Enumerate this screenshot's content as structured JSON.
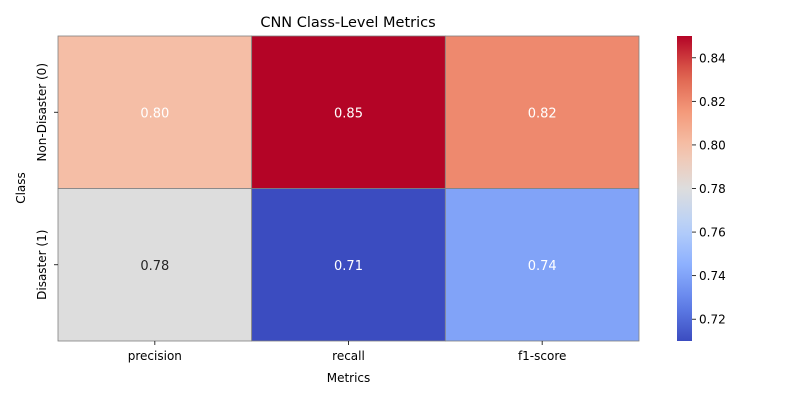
{
  "chart_data": {
    "type": "heatmap",
    "title": "CNN Class-Level Metrics",
    "xlabel": "Metrics",
    "ylabel": "Class",
    "x_categories": [
      "precision",
      "recall",
      "f1-score"
    ],
    "y_categories": [
      "Non-Disaster (0)",
      "Disaster (1)"
    ],
    "values": [
      [
        0.8,
        0.85,
        0.82
      ],
      [
        0.78,
        0.71,
        0.74
      ]
    ],
    "cell_labels": [
      [
        "0.80",
        "0.85",
        "0.82"
      ],
      [
        "0.78",
        "0.71",
        "0.74"
      ]
    ],
    "colormap": "coolwarm",
    "colorbar": {
      "min": 0.71,
      "max": 0.85,
      "ticks": [
        0.72,
        0.74,
        0.76,
        0.78,
        0.8,
        0.82,
        0.84
      ],
      "tick_labels": [
        "0.72",
        "0.74",
        "0.76",
        "0.78",
        "0.80",
        "0.82",
        "0.84"
      ]
    },
    "grid_line_color": "#808080"
  }
}
